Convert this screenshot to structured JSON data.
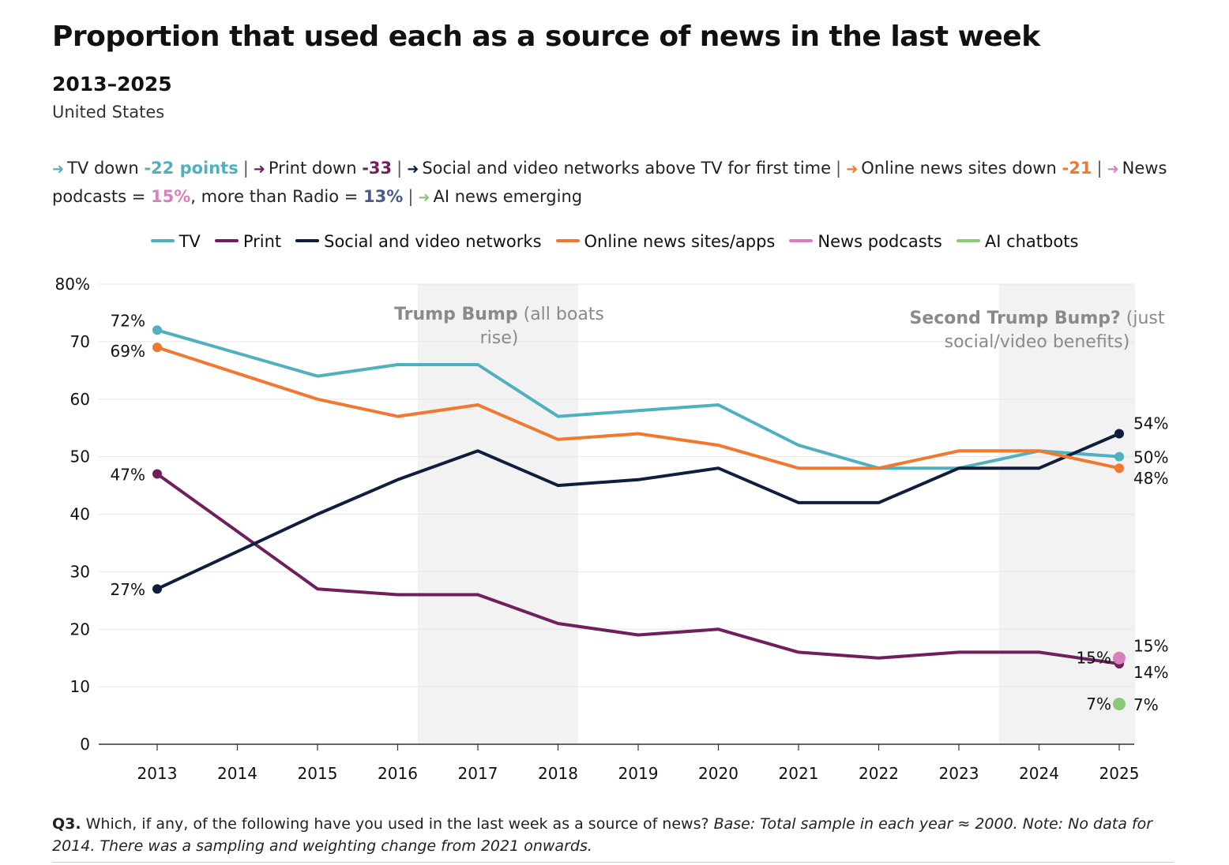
{
  "title": "Proportion that used each as a source of news in the last week",
  "subtitle": "2013–2025",
  "region": "United States",
  "summary": [
    {
      "arrow_color": "#4fb0bf",
      "pre": "TV down ",
      "value": "-22 points",
      "value_color": "#4fb0bf",
      "post": ""
    },
    {
      "arrow_color": "#6e1f5c",
      "pre": "Print down ",
      "value": "-33",
      "value_color": "#6e1f5c",
      "post": ""
    },
    {
      "arrow_color": "#0f1e3d",
      "pre": "Social and video networks above TV for first time",
      "value": "",
      "value_color": "#0f1e3d",
      "post": ""
    },
    {
      "arrow_color": "#f07830",
      "pre": "Online news sites down ",
      "value": "-21",
      "value_color": "#f07830",
      "post": ""
    },
    {
      "arrow_color": "#d97fbe",
      "pre": "News podcasts = ",
      "value": "15%",
      "value_color": "#d97fbe",
      "post": ", more than Radio = "
    },
    {
      "arrow_color": "#8cc878",
      "pre": "AI news emerging",
      "value": "",
      "value_color": "#8cc878",
      "post": ""
    }
  ],
  "summary_radio_value": "13%",
  "summary_radio_color": "#4a5a8a",
  "legend": [
    {
      "label": "TV",
      "color": "#4fb0bf"
    },
    {
      "label": "Print",
      "color": "#6e1f5c"
    },
    {
      "label": "Social and video networks",
      "color": "#0f1e3d"
    },
    {
      "label": "Online news sites/apps",
      "color": "#f07830"
    },
    {
      "label": "News podcasts",
      "color": "#d97fbe"
    },
    {
      "label": "AI chatbots",
      "color": "#8cc878"
    }
  ],
  "annotations": [
    {
      "bold": "Trump Bump",
      "rest": " (all boats",
      "line2": "rise)",
      "band": [
        2016.25,
        2018.25
      ]
    },
    {
      "bold": "Second Trump Bump?",
      "rest": " (just",
      "line2": "social/video benefits)",
      "band": [
        2023.5,
        2025.2
      ]
    }
  ],
  "footnote": {
    "q": "Q3.",
    "text": " Which, if any, of the following have you used in the last week as a source of news? ",
    "italic": "Base: Total sample in each year ≈ 2000. Note: No data for 2014. There was a sampling and weighting change from 2021 onwards."
  },
  "chart_data": {
    "type": "line",
    "x": [
      2013,
      2014,
      2015,
      2016,
      2017,
      2018,
      2019,
      2020,
      2021,
      2022,
      2023,
      2024,
      2025
    ],
    "ylim": [
      0,
      80
    ],
    "yticks": [
      0,
      10,
      20,
      30,
      40,
      50,
      60,
      70,
      80
    ],
    "ytick_labels": [
      "0",
      "10",
      "20",
      "30",
      "40",
      "50",
      "60",
      "70",
      "80%"
    ],
    "grid": true,
    "legend_position": "top",
    "series": [
      {
        "name": "TV",
        "color": "#4fb0bf",
        "points": [
          [
            2013,
            72
          ],
          [
            2015,
            64
          ],
          [
            2016,
            66
          ],
          [
            2017,
            66
          ],
          [
            2018,
            57
          ],
          [
            2019,
            58
          ],
          [
            2020,
            59
          ],
          [
            2021,
            52
          ],
          [
            2022,
            48
          ],
          [
            2023,
            48
          ],
          [
            2024,
            51
          ],
          [
            2025,
            50
          ]
        ],
        "start_label": "72%",
        "end_label": "50%"
      },
      {
        "name": "Print",
        "color": "#6e1f5c",
        "points": [
          [
            2013,
            47
          ],
          [
            2015,
            27
          ],
          [
            2016,
            26
          ],
          [
            2017,
            26
          ],
          [
            2018,
            21
          ],
          [
            2019,
            19
          ],
          [
            2020,
            20
          ],
          [
            2021,
            16
          ],
          [
            2022,
            15
          ],
          [
            2023,
            16
          ],
          [
            2024,
            16
          ],
          [
            2025,
            14
          ]
        ],
        "start_label": "47%",
        "end_label": "14%"
      },
      {
        "name": "Social and video networks",
        "color": "#0f1e3d",
        "points": [
          [
            2013,
            27
          ],
          [
            2015,
            40
          ],
          [
            2016,
            46
          ],
          [
            2017,
            51
          ],
          [
            2018,
            45
          ],
          [
            2019,
            46
          ],
          [
            2020,
            48
          ],
          [
            2021,
            42
          ],
          [
            2022,
            42
          ],
          [
            2023,
            48
          ],
          [
            2024,
            48
          ],
          [
            2025,
            54
          ]
        ],
        "start_label": "27%",
        "end_label": "54%"
      },
      {
        "name": "Online news sites/apps",
        "color": "#f07830",
        "points": [
          [
            2013,
            69
          ],
          [
            2015,
            60
          ],
          [
            2016,
            57
          ],
          [
            2017,
            59
          ],
          [
            2018,
            53
          ],
          [
            2019,
            54
          ],
          [
            2020,
            52
          ],
          [
            2021,
            48
          ],
          [
            2022,
            48
          ],
          [
            2023,
            51
          ],
          [
            2024,
            51
          ],
          [
            2025,
            48
          ]
        ],
        "start_label": "69%",
        "end_label": "48%"
      },
      {
        "name": "News podcasts",
        "color": "#d97fbe",
        "points": [
          [
            2025,
            15
          ]
        ],
        "start_label": "15%",
        "end_label": "15%"
      },
      {
        "name": "AI chatbots",
        "color": "#8cc878",
        "points": [
          [
            2025,
            7
          ]
        ],
        "start_label": "7%",
        "end_label": "7%"
      }
    ]
  }
}
